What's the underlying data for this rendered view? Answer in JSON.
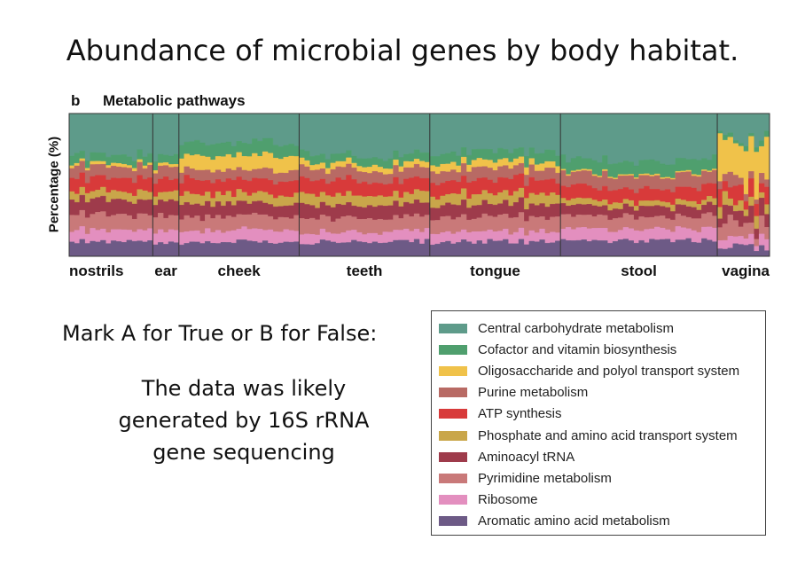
{
  "title": "Abundance of microbial genes by body habitat.",
  "question": "Mark A for True or B for False:",
  "statement_lines": [
    "The data was likely",
    "generated by 16S rRNA",
    "gene sequencing"
  ],
  "chart_data": {
    "type": "area",
    "stacked": true,
    "panel_label": "b",
    "title": "Metabolic pathways",
    "xlabel": "",
    "ylabel": "Percentage (%)",
    "ylim": [
      0,
      100
    ],
    "legend_position": "below-right",
    "categories": [
      "nostrils",
      "ear",
      "cheek",
      "teeth",
      "tongue",
      "stool",
      "vagina"
    ],
    "samples_per_category": [
      16,
      5,
      23,
      25,
      25,
      30,
      10
    ],
    "series": [
      {
        "name": "Central carbohydrate metabolism",
        "color": "#5e9b8a"
      },
      {
        "name": "Cofactor and vitamin biosynthesis",
        "color": "#4f9f6e"
      },
      {
        "name": "Oligosaccharide and polyol transport system",
        "color": "#f0c24a"
      },
      {
        "name": "Purine metabolism",
        "color": "#b86a64"
      },
      {
        "name": "ATP synthesis",
        "color": "#d83a3a"
      },
      {
        "name": "Phosphate and amino acid transport system",
        "color": "#c9a64a"
      },
      {
        "name": "Aminoacyl tRNA",
        "color": "#9e3b4b"
      },
      {
        "name": "Pyrimidine metabolism",
        "color": "#c97979"
      },
      {
        "name": "Ribosome",
        "color": "#e38fbf"
      },
      {
        "name": "Aromatic amino acid metabolism",
        "color": "#6d5a86"
      }
    ],
    "composition_by_category": {
      "nostrils": [
        30,
        6,
        2,
        8,
        9,
        6,
        10,
        11,
        8,
        10
      ],
      "ear": [
        31,
        6,
        2,
        8,
        9,
        6,
        10,
        11,
        8,
        9
      ],
      "cheek": [
        20,
        9,
        10,
        7,
        10,
        7,
        9,
        10,
        8,
        10
      ],
      "teeth": [
        29,
        6,
        4,
        8,
        10,
        7,
        9,
        10,
        7,
        10
      ],
      "tongue": [
        27,
        7,
        5,
        8,
        10,
        7,
        9,
        10,
        7,
        10
      ],
      "stool": [
        33,
        9,
        1,
        9,
        9,
        4,
        7,
        9,
        8,
        11
      ],
      "vagina": [
        18,
        3,
        25,
        6,
        11,
        7,
        9,
        9,
        6,
        6
      ]
    }
  }
}
